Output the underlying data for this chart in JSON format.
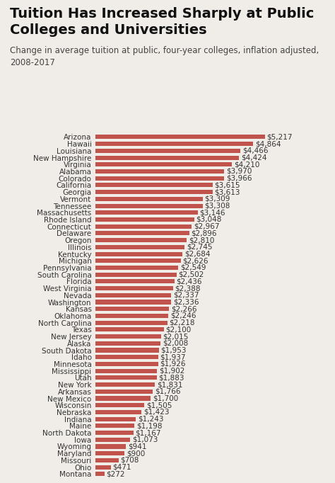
{
  "title": "Tuition Has Increased Sharply at Public\nColleges and Universities",
  "subtitle": "Change in average tuition at public, four-year colleges, inflation adjusted,\n2008-2017",
  "states": [
    "Arizona",
    "Hawaii",
    "Louisiana",
    "New Hampshire",
    "Virginia",
    "Alabama",
    "Colorado",
    "California",
    "Georgia",
    "Vermont",
    "Tennessee",
    "Massachusetts",
    "Rhode Island",
    "Connecticut",
    "Delaware",
    "Oregon",
    "Illinois",
    "Kentucky",
    "Michigan",
    "Pennsylvania",
    "South Carolina",
    "Florida",
    "West Virginia",
    "Nevada",
    "Washington",
    "Kansas",
    "Oklahoma",
    "North Carolina",
    "Texas",
    "New Jersey",
    "Alaska",
    "South Dakota",
    "Idaho",
    "Minnesota",
    "Mississippi",
    "Utah",
    "New York",
    "Arkansas",
    "New Mexico",
    "Wisconsin",
    "Nebraska",
    "Indiana",
    "Maine",
    "North Dakota",
    "Iowa",
    "Wyoming",
    "Maryland",
    "Missouri",
    "Ohio",
    "Montana"
  ],
  "values": [
    5217,
    4864,
    4466,
    4424,
    4210,
    3970,
    3966,
    3615,
    3613,
    3309,
    3308,
    3146,
    3048,
    2967,
    2896,
    2810,
    2745,
    2684,
    2626,
    2549,
    2502,
    2436,
    2388,
    2337,
    2336,
    2266,
    2246,
    2218,
    2100,
    2015,
    2008,
    1953,
    1937,
    1926,
    1902,
    1883,
    1831,
    1766,
    1700,
    1505,
    1423,
    1243,
    1198,
    1167,
    1073,
    941,
    900,
    708,
    471,
    272
  ],
  "bar_color": "#c0544d",
  "bg_color": "#f0ede8",
  "title_fontsize": 14,
  "subtitle_fontsize": 8.5,
  "label_fontsize": 7.5,
  "value_fontsize": 7.5
}
